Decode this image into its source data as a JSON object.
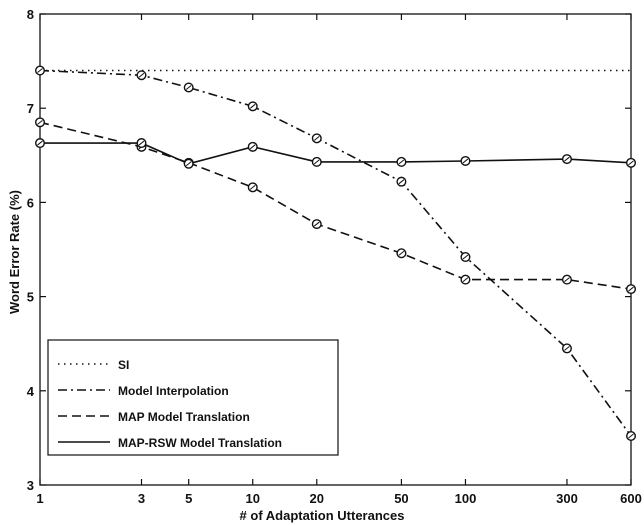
{
  "chart_data": {
    "type": "line",
    "xscale": "log",
    "x": [
      1,
      3,
      5,
      10,
      20,
      50,
      100,
      300,
      600
    ],
    "x_tick_labels": [
      "1",
      "3",
      "5",
      "10",
      "20",
      "50",
      "100",
      "300",
      "600"
    ],
    "xlim": [
      1,
      600
    ],
    "ylim": [
      3,
      8
    ],
    "y_ticks": [
      3,
      4,
      5,
      6,
      7,
      8
    ],
    "xlabel": "# of Adaptation Utterances",
    "ylabel": "Word Error Rate (%)",
    "grid": false,
    "legend_position": "bottom-left",
    "series": [
      {
        "name": "SI",
        "style": "dotted",
        "markers": false,
        "color": "#111111",
        "values": [
          7.4,
          7.4,
          7.4,
          7.4,
          7.4,
          7.4,
          7.4,
          7.4,
          7.4
        ]
      },
      {
        "name": "Model Interpolation",
        "style": "dashdot",
        "markers": true,
        "color": "#111111",
        "values": [
          7.4,
          7.35,
          7.22,
          7.02,
          6.68,
          6.22,
          5.42,
          4.45,
          3.52
        ]
      },
      {
        "name": "MAP Model Translation",
        "style": "dashed",
        "markers": true,
        "color": "#111111",
        "values": [
          6.85,
          6.59,
          6.42,
          6.16,
          5.77,
          5.46,
          5.18,
          5.18,
          5.08
        ]
      },
      {
        "name": "MAP-RSW Model Translation",
        "style": "solid",
        "markers": true,
        "color": "#111111",
        "values": [
          6.63,
          6.63,
          6.41,
          6.59,
          6.43,
          6.43,
          6.44,
          6.46,
          6.42
        ]
      }
    ]
  }
}
